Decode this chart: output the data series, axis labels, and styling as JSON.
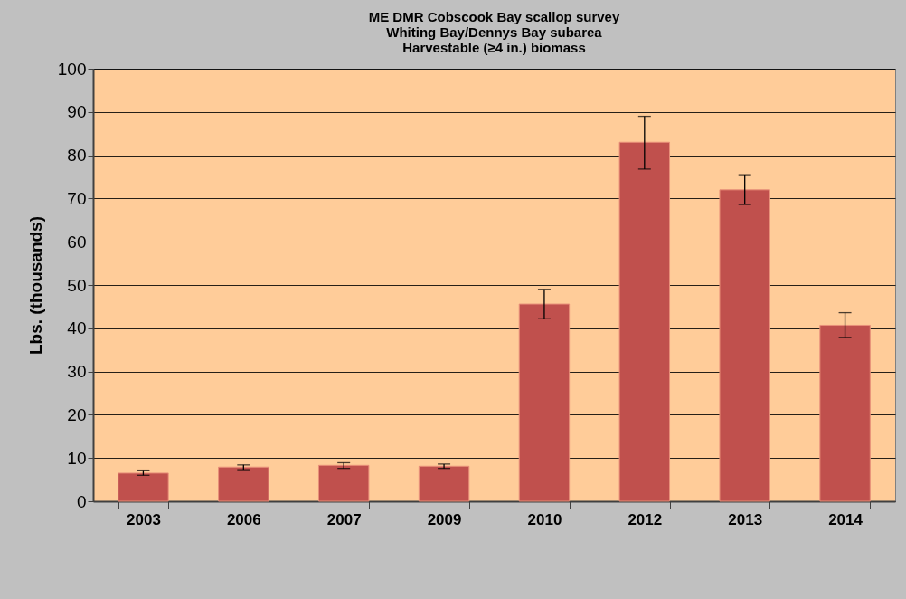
{
  "chart_data": {
    "type": "bar",
    "title": "ME DMR Cobscook Bay scallop survey\nWhiting Bay/Dennys Bay subarea\nHarvestable (≥4 in.) biomass",
    "ylabel": "Lbs. (thousands)",
    "categories": [
      "2003",
      "2006",
      "2007",
      "2009",
      "2010",
      "2012",
      "2013",
      "2014"
    ],
    "values": [
      6.5,
      7.9,
      8.3,
      8.1,
      45.6,
      83.0,
      72.0,
      40.7
    ],
    "errors": [
      [
        6.0,
        7.2
      ],
      [
        7.3,
        8.4
      ],
      [
        7.6,
        8.9
      ],
      [
        7.6,
        8.6
      ],
      [
        42.2,
        49.0
      ],
      [
        76.8,
        89.0
      ],
      [
        68.6,
        75.5
      ],
      [
        37.9,
        43.6
      ]
    ],
    "color": "#c0504d",
    "ylim": [
      0,
      100
    ],
    "yticks": [
      0,
      10,
      20,
      30,
      40,
      50,
      60,
      70,
      80,
      90,
      100
    ],
    "grid": "y"
  }
}
